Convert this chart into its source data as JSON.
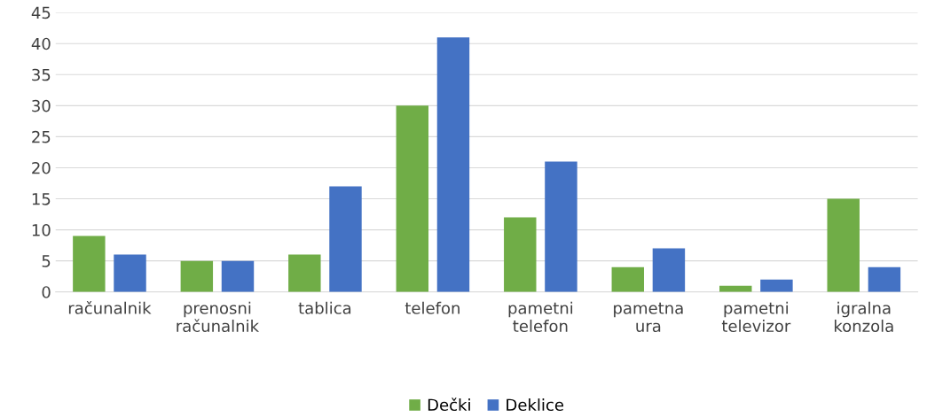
{
  "chart_data": {
    "type": "bar",
    "categories": [
      "računalnik",
      "prenosni\nračunalnik",
      "tablica",
      "telefon",
      "pametni\ntelefon",
      "pametna\nura",
      "pametni\ntelevizor",
      "igralna\nkonzola"
    ],
    "series": [
      {
        "name": "Dečki",
        "color": "#70ad47",
        "values": [
          9,
          5,
          6,
          30,
          12,
          4,
          1,
          15
        ]
      },
      {
        "name": "Deklice",
        "color": "#4472c4",
        "values": [
          6,
          5,
          17,
          41,
          21,
          7,
          2,
          4
        ]
      }
    ],
    "ylim": [
      0,
      45
    ],
    "yticks": [
      0,
      5,
      10,
      15,
      20,
      25,
      30,
      35,
      40,
      45
    ],
    "grid": "y",
    "legend": "bottom"
  }
}
